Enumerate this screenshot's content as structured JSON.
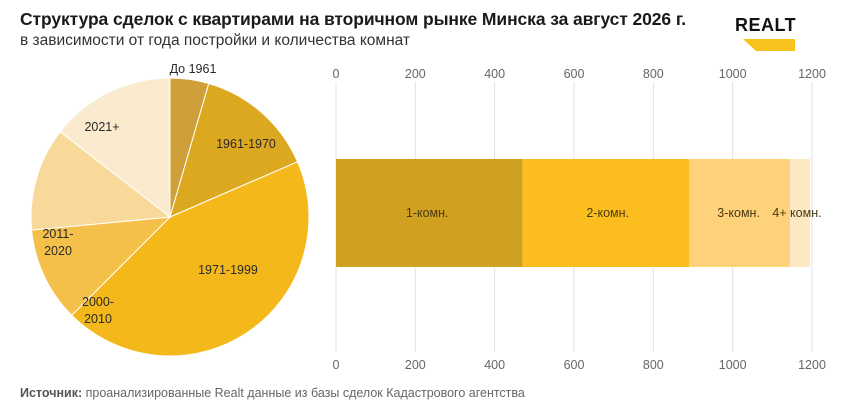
{
  "header": {
    "title": "Структура сделок с квартирами на вторичном рынке Минска за август 2026 г.",
    "subtitle": "в зависимости от года постройки и количества комнат"
  },
  "logo": {
    "text": "REALT",
    "color": "#f6c21b"
  },
  "source": {
    "label": "Источник:",
    "text": " проанализированные Realt данные из базы сделок Кадастрового агентства"
  },
  "chart_data": [
    {
      "type": "pie",
      "categories": [
        "До 1961",
        "1961-1970",
        "1971-1999",
        "2000-2010",
        "2011-2020",
        "2021+"
      ],
      "values": [
        4.5,
        14,
        44,
        11,
        12,
        14.5
      ],
      "colors": [
        "#cfa03a",
        "#dba820",
        "#f4b81a",
        "#f5c04a",
        "#f8d999",
        "#faebce"
      ],
      "label_lines": [
        [
          "До 1961"
        ],
        [
          "1961-1970"
        ],
        [
          "1971-1999"
        ],
        [
          "2000-",
          "2010"
        ],
        [
          "2011-",
          "2020"
        ],
        [
          "2021+"
        ]
      ]
    },
    {
      "type": "bar",
      "orientation": "horizontal",
      "stacked": true,
      "categories": [
        "1-комн.",
        "2-комн.",
        "3-комн.",
        "4+ комн."
      ],
      "values": [
        470,
        420,
        255,
        50
      ],
      "colors": [
        "#d0a020",
        "#fbbe1e",
        "#fdd27a",
        "#fde8c4"
      ],
      "xlim": [
        0,
        1200
      ],
      "xticks": [
        "0",
        "200",
        "400",
        "600",
        "800",
        "1000",
        "1200"
      ],
      "grid": true
    }
  ]
}
